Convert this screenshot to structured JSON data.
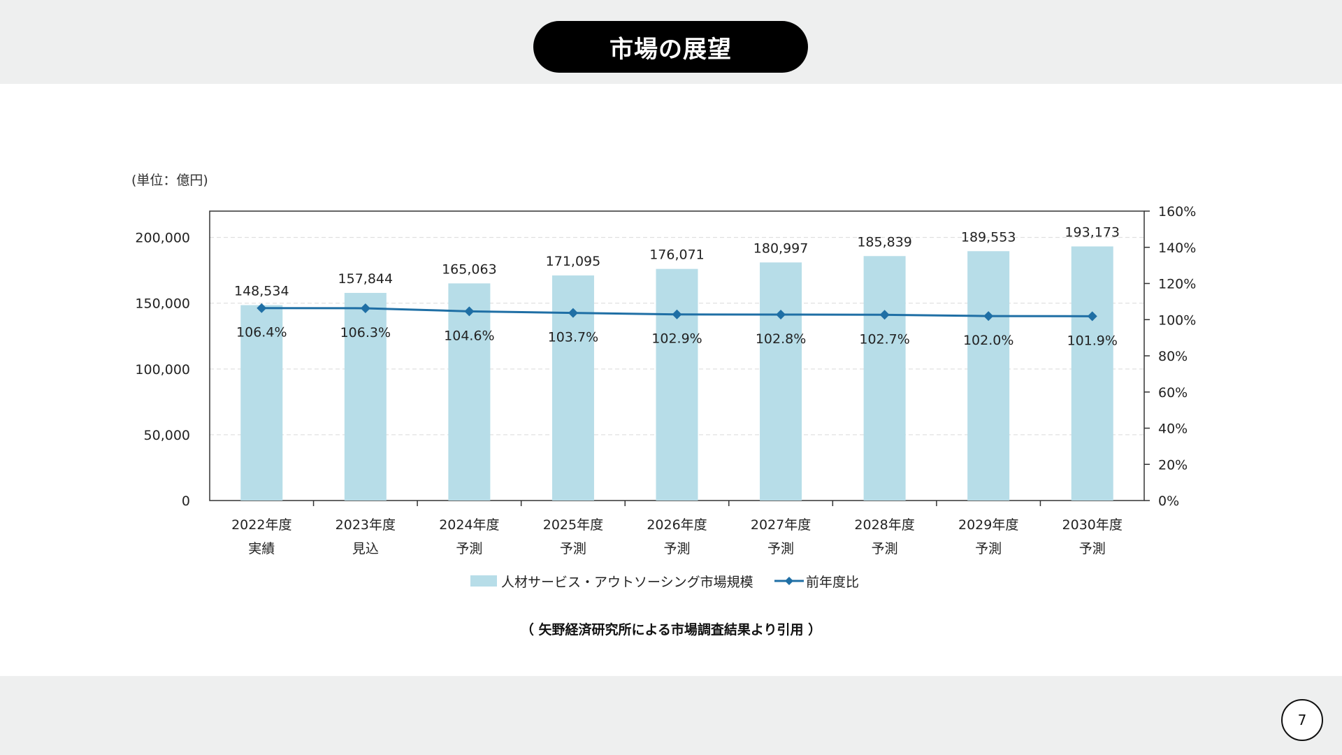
{
  "slide": {
    "title": "市場の展望",
    "source_note": "（ 矢野経済研究所による市場調査結果より引用 ）",
    "page_number": "7"
  },
  "chart_data": {
    "type": "bar",
    "unit_label": "(単位：億円)",
    "categories": [
      [
        "2022年度",
        "実績"
      ],
      [
        "2023年度",
        "見込"
      ],
      [
        "2024年度",
        "予測"
      ],
      [
        "2025年度",
        "予測"
      ],
      [
        "2026年度",
        "予測"
      ],
      [
        "2027年度",
        "予測"
      ],
      [
        "2028年度",
        "予測"
      ],
      [
        "2029年度",
        "予測"
      ],
      [
        "2030年度",
        "予測"
      ]
    ],
    "series": [
      {
        "name": "人材サービス・アウトソーシング市場規模",
        "type": "bar",
        "axis": "left",
        "color": "#b7dde8",
        "values": [
          148534,
          157844,
          165063,
          171095,
          176071,
          180997,
          185839,
          189553,
          193173
        ],
        "labels": [
          "148,534",
          "157,844",
          "165,063",
          "171,095",
          "176,071",
          "180,997",
          "185,839",
          "189,553",
          "193,173"
        ]
      },
      {
        "name": "前年度比",
        "type": "line",
        "axis": "right",
        "color": "#1f6fa5",
        "values": [
          106.4,
          106.3,
          104.6,
          103.7,
          102.9,
          102.8,
          102.7,
          102.0,
          101.9
        ],
        "labels": [
          "106.4%",
          "106.3%",
          "104.6%",
          "103.7%",
          "102.9%",
          "102.8%",
          "102.7%",
          "102.0%",
          "101.9%"
        ]
      }
    ],
    "y_left": {
      "ylim": [
        0,
        220000
      ],
      "ticks": [
        0,
        50000,
        100000,
        150000,
        200000
      ],
      "tick_labels": [
        "0",
        "50,000",
        "100,000",
        "150,000",
        "200,000"
      ]
    },
    "y_right": {
      "ylim": [
        0,
        160
      ],
      "ticks": [
        0,
        20,
        40,
        60,
        80,
        100,
        120,
        140,
        160
      ],
      "tick_labels": [
        "0%",
        "20%",
        "40%",
        "60%",
        "80%",
        "100%",
        "120%",
        "140%",
        "160%"
      ]
    },
    "grid": true,
    "legend_position": "bottom"
  }
}
